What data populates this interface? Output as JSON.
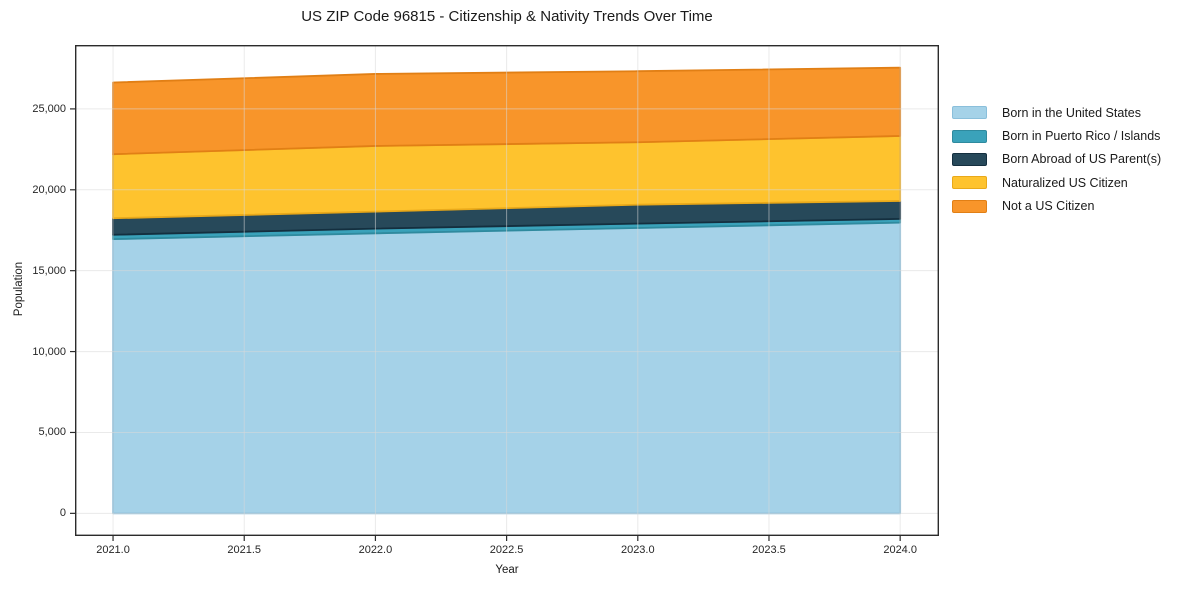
{
  "chart_data": {
    "type": "area",
    "stacked": true,
    "title": "US ZIP Code 96815 - Citizenship & Nativity Trends Over Time",
    "xlabel": "Year",
    "ylabel": "Population",
    "x": [
      2021,
      2022,
      2023,
      2024
    ],
    "series": [
      {
        "name": "Born in the United States",
        "color": "#a5d2e8",
        "edge_color": "#8abfdb",
        "values": [
          16950,
          17310,
          17640,
          17970
        ]
      },
      {
        "name": "Born in Puerto Rico / Islands",
        "color": "#3aa2ba",
        "edge_color": "#2f8a9e",
        "values": [
          270,
          290,
          270,
          230
        ]
      },
      {
        "name": "Born Abroad of US Parent(s)",
        "color": "#27495a",
        "edge_color": "#142f3f",
        "values": [
          1020,
          1050,
          1170,
          1110
        ]
      },
      {
        "name": "Naturalized US Citizen",
        "color": "#fec32e",
        "edge_color": "#e9a91a",
        "values": [
          3960,
          4060,
          3860,
          4020
        ]
      },
      {
        "name": "Not a US Citizen",
        "color": "#f8952a",
        "edge_color": "#e17f15",
        "values": [
          4430,
          4450,
          4390,
          4220
        ]
      }
    ],
    "xticks": [
      2021.0,
      2021.5,
      2022.0,
      2022.5,
      2023.0,
      2023.5,
      2024.0
    ],
    "xtick_labels": [
      "2021.0",
      "2021.5",
      "2022.0",
      "2022.5",
      "2023.0",
      "2023.5",
      "2024.0"
    ],
    "yticks": [
      0,
      5000,
      10000,
      15000,
      20000,
      25000
    ],
    "ytick_labels": [
      "0",
      "5,000",
      "10,000",
      "15,000",
      "20,000",
      "25,000"
    ],
    "xlim": [
      2020.855,
      2024.148
    ],
    "ylim": [
      -1400,
      28950
    ],
    "grid": true,
    "legend_position": "right-outside",
    "text_color": "#1a1a1a",
    "spine_color": "#2b2b2b",
    "grid_color": "#d9d9d9"
  }
}
